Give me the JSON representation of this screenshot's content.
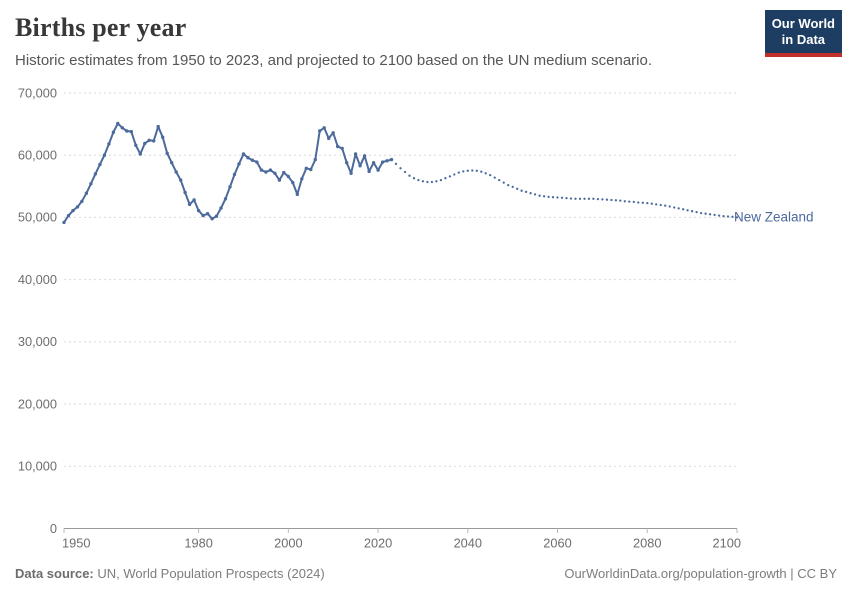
{
  "header": {
    "title": "Births per year",
    "subtitle": "Historic estimates from 1950 to 2023, and projected to 2100 based on the UN medium scenario."
  },
  "logo": {
    "line1": "Our World",
    "line2": "in Data",
    "bg_color": "#1d3d63",
    "accent_color": "#c0312b"
  },
  "footer": {
    "source_label": "Data source:",
    "source_text": " UN, World Population Prospects (2024)",
    "right_text": "OurWorldinData.org/population-growth | CC BY"
  },
  "chart_data": {
    "type": "line",
    "title": "Births per year",
    "entity": "New Zealand",
    "series_color": "#4c6a9c",
    "grid_color": "#d9d9d9",
    "axis_color": "#999999",
    "x_range": [
      1950,
      2100
    ],
    "y_range": [
      0,
      70000
    ],
    "x_ticks": [
      1950,
      1980,
      2000,
      2020,
      2040,
      2060,
      2080,
      2100
    ],
    "y_ticks": {
      "values": [
        0,
        10000,
        20000,
        30000,
        40000,
        50000,
        60000,
        70000
      ],
      "labels": [
        "0",
        "10,000",
        "20,000",
        "30,000",
        "40,000",
        "50,000",
        "60,000",
        "70,000"
      ]
    },
    "series": [
      {
        "name": "Historic estimates",
        "style": "solid_with_markers",
        "start_year": 1950,
        "values": [
          49200,
          50300,
          51100,
          51700,
          52600,
          53900,
          55400,
          57000,
          58500,
          60000,
          61800,
          63700,
          65100,
          64400,
          63900,
          63800,
          61600,
          60200,
          61900,
          62400,
          62300,
          64600,
          62900,
          60300,
          58800,
          57300,
          56000,
          54000,
          52100,
          52800,
          51100,
          50300,
          50600,
          49800,
          50200,
          51500,
          53000,
          54900,
          56900,
          58600,
          60200,
          59600,
          59200,
          58900,
          57600,
          57300,
          57600,
          57100,
          56000,
          57200,
          56600,
          55600,
          53700,
          56200,
          57900,
          57700,
          59300,
          63900,
          64400,
          62700,
          63600,
          61400,
          61100,
          58800,
          57100,
          60200,
          58300,
          59900,
          57400,
          58800,
          57600,
          58900,
          59100,
          59300
        ]
      },
      {
        "name": "UN medium scenario projection",
        "style": "dotted",
        "start_year": 2024,
        "values": [
          58600,
          57900,
          57300,
          56700,
          56300,
          56000,
          55800,
          55700,
          55700,
          55800,
          56000,
          56300,
          56600,
          56900,
          57200,
          57400,
          57500,
          57550,
          57500,
          57350,
          57100,
          56800,
          56400,
          56000,
          55600,
          55200,
          54900,
          54600,
          54300,
          54100,
          53900,
          53700,
          53500,
          53400,
          53300,
          53250,
          53200,
          53150,
          53100,
          53050,
          53000,
          53000,
          53000,
          53000,
          53000,
          52950,
          52900,
          52850,
          52800,
          52750,
          52700,
          52600,
          52550,
          52500,
          52400,
          52350,
          52300,
          52200,
          52100,
          52000,
          51900,
          51750,
          51600,
          51450,
          51300,
          51150,
          51000,
          50850,
          50700,
          50600,
          50500,
          50400,
          50300,
          50200,
          50150,
          50100,
          50000
        ]
      }
    ]
  }
}
